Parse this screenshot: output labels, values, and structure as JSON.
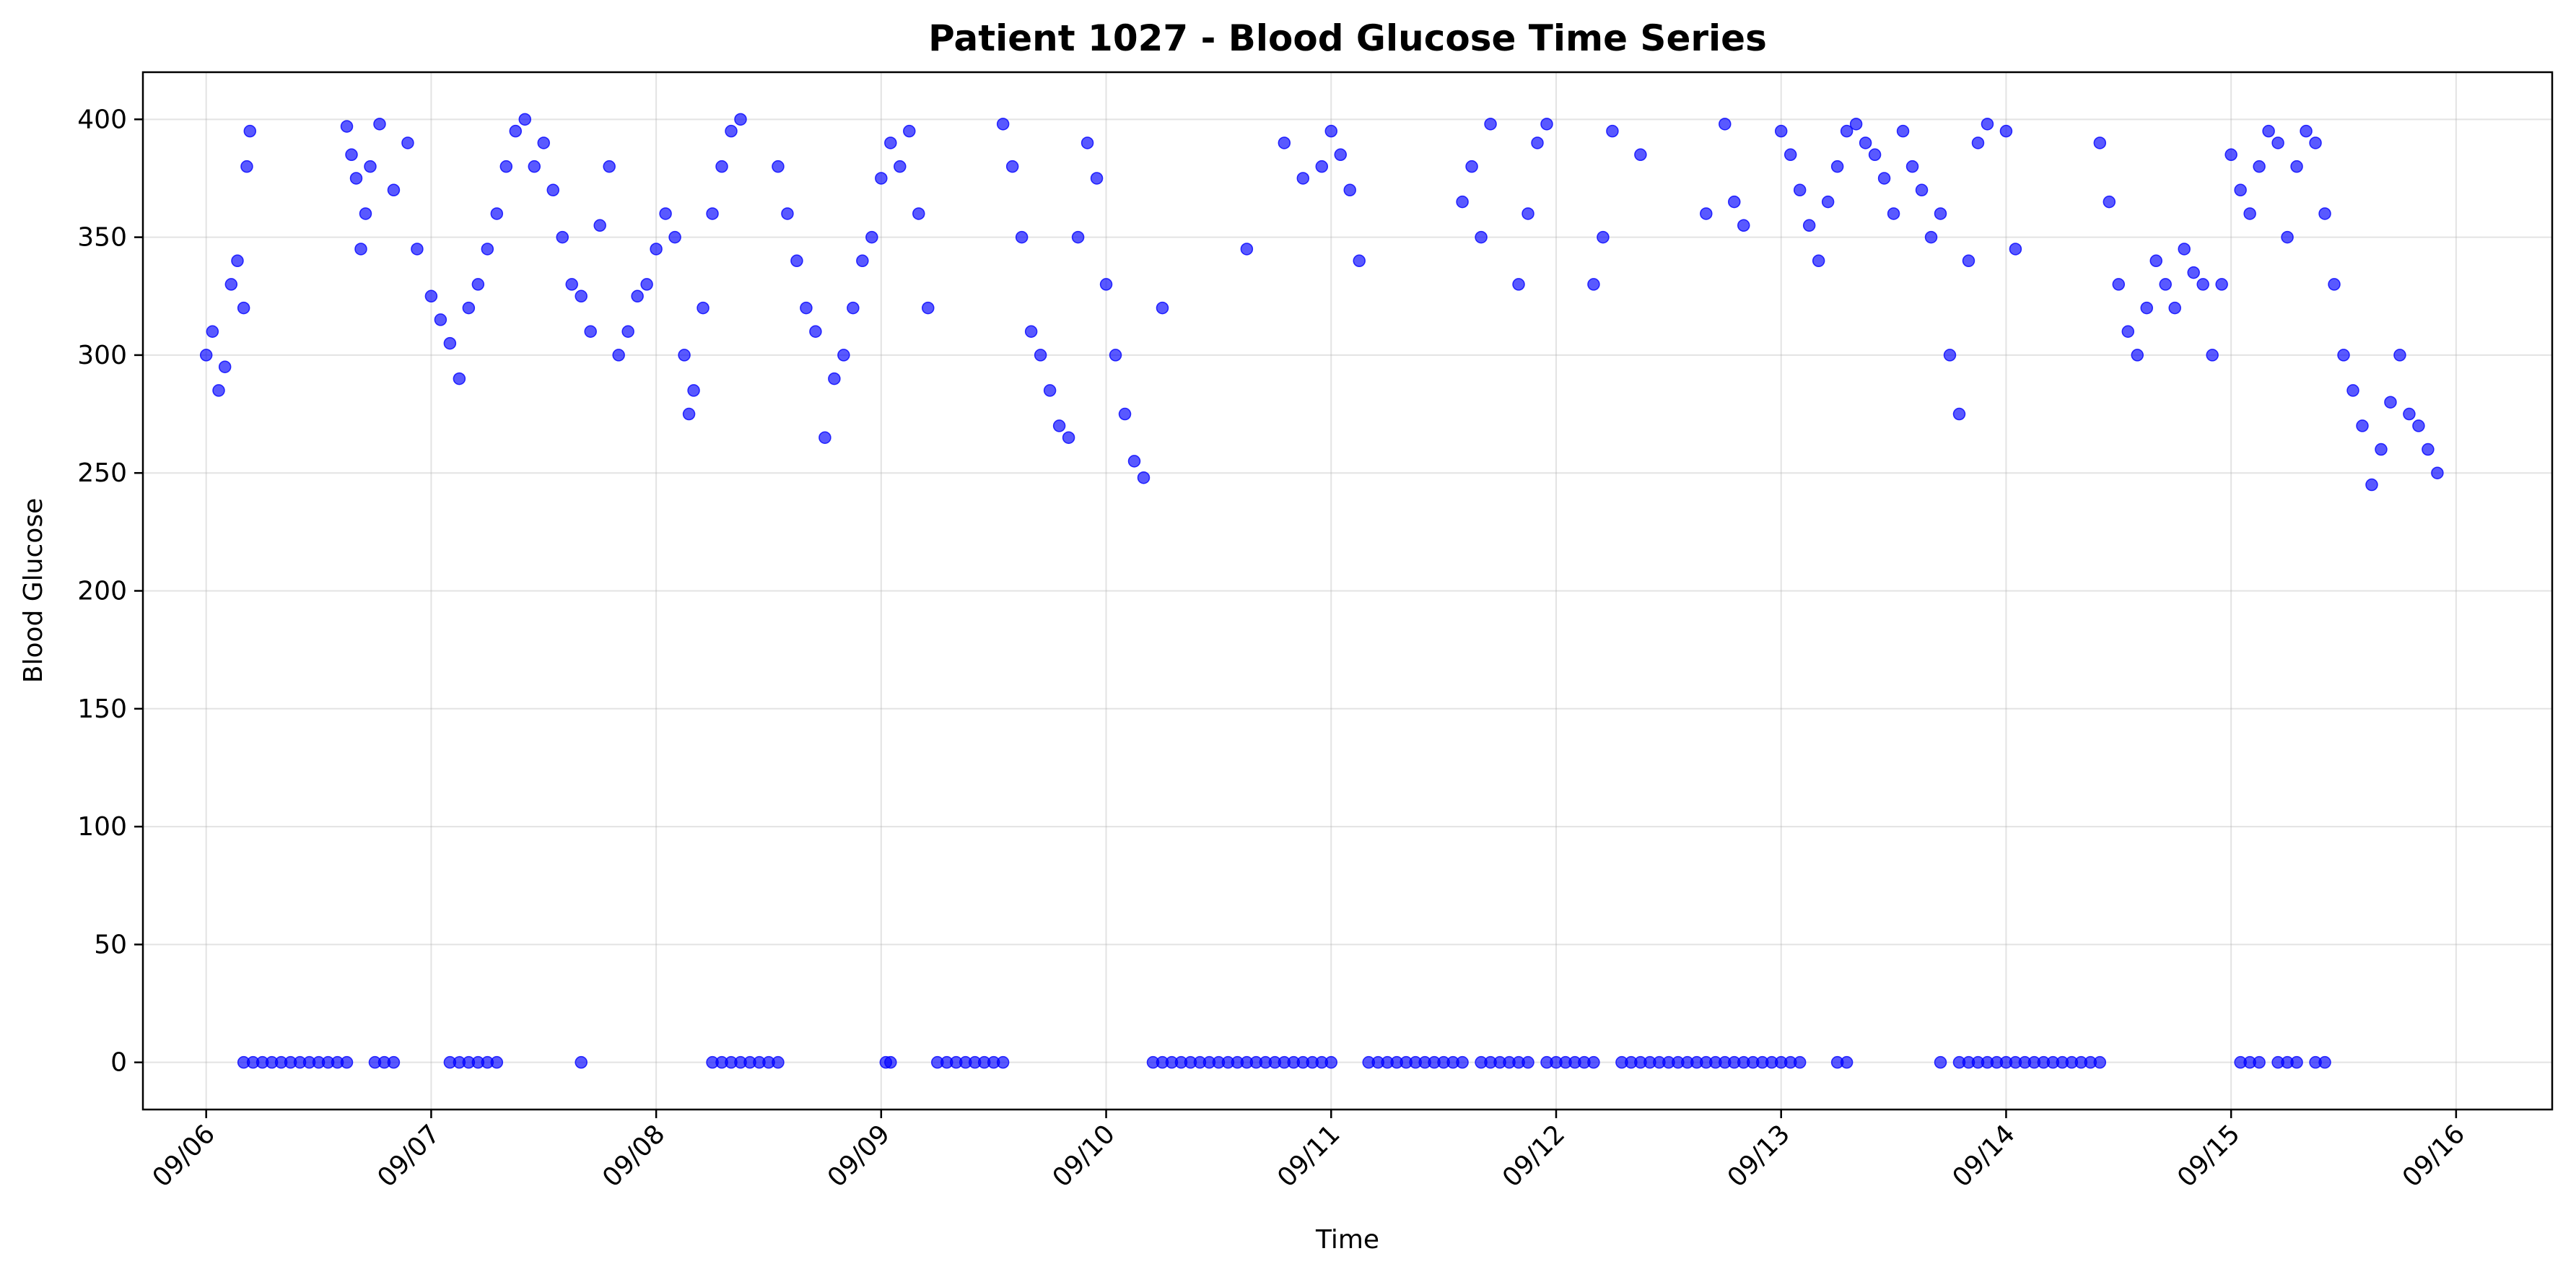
{
  "chart_data": {
    "type": "scatter",
    "title": "Patient 1027 - Blood Glucose Time Series",
    "xlabel": "Time",
    "ylabel": "Blood Glucose",
    "x_ticks": [
      "09/06",
      "09/07",
      "09/08",
      "09/09",
      "09/10",
      "09/11",
      "09/12",
      "09/13",
      "09/14",
      "09/15",
      "09/16"
    ],
    "y_ticks": [
      0,
      50,
      100,
      150,
      200,
      250,
      300,
      350,
      400
    ],
    "xlim": [
      "09/05 17:15",
      "09/16 10:15"
    ],
    "ylim": [
      -20,
      420
    ],
    "grid": true,
    "marker_color": "#0000ff",
    "series": [
      {
        "x": [
          "09/06 00:00",
          "09/06 00:40",
          "09/06 01:20",
          "09/06 02:00",
          "09/06 02:40",
          "09/06 03:20",
          "09/06 04:00",
          "09/06 04:20",
          "09/06 04:40",
          "09/06 15:00",
          "09/06 15:30",
          "09/06 16:00",
          "09/06 16:30",
          "09/06 17:00",
          "09/06 17:30",
          "09/06 18:30",
          "09/06 20:00",
          "09/06 21:30",
          "09/06 22:30",
          "09/07 00:00",
          "09/07 01:00",
          "09/07 02:00",
          "09/07 03:00",
          "09/07 04:00",
          "09/07 05:00",
          "09/07 06:00",
          "09/07 07:00",
          "09/07 08:00",
          "09/07 09:00",
          "09/07 10:00",
          "09/07 11:00",
          "09/07 12:00",
          "09/07 13:00",
          "09/07 14:00",
          "09/07 15:00",
          "09/07 16:00",
          "09/07 17:00",
          "09/07 18:00",
          "09/07 19:00",
          "09/07 20:00",
          "09/07 21:00",
          "09/07 22:00",
          "09/07 23:00",
          "09/08 00:00",
          "09/08 01:00",
          "09/08 02:00",
          "09/08 03:00",
          "09/08 03:30",
          "09/08 04:00",
          "09/08 05:00",
          "09/08 06:00",
          "09/08 07:00",
          "09/08 08:00",
          "09/08 09:00",
          "09/08 13:00",
          "09/08 14:00",
          "09/08 15:00",
          "09/08 16:00",
          "09/08 17:00",
          "09/08 18:00",
          "09/08 19:00",
          "09/08 20:00",
          "09/08 21:00",
          "09/08 22:00",
          "09/08 23:00",
          "09/09 00:00",
          "09/09 01:00",
          "09/09 02:00",
          "09/09 03:00",
          "09/09 04:00",
          "09/09 05:00",
          "09/09 13:00",
          "09/09 14:00",
          "09/09 15:00",
          "09/09 16:00",
          "09/09 17:00",
          "09/09 18:00",
          "09/09 19:00",
          "09/09 20:00",
          "09/09 21:00",
          "09/09 22:00",
          "09/09 23:00",
          "09/10 00:00",
          "09/10 01:00",
          "09/10 02:00",
          "09/10 03:00",
          "09/10 04:00",
          "09/10 06:00",
          "09/10 15:00",
          "09/10 19:00",
          "09/10 21:00",
          "09/10 23:00",
          "09/11 00:00",
          "09/11 01:00",
          "09/11 02:00",
          "09/11 03:00",
          "09/11 14:00",
          "09/11 15:00",
          "09/11 16:00",
          "09/11 17:00",
          "09/11 20:00",
          "09/11 21:00",
          "09/11 22:00",
          "09/11 23:00",
          "09/12 04:00",
          "09/12 05:00",
          "09/12 06:00",
          "09/12 09:00",
          "09/12 16:00",
          "09/12 18:00",
          "09/12 19:00",
          "09/12 20:00",
          "09/13 00:00",
          "09/13 01:00",
          "09/13 02:00",
          "09/13 03:00",
          "09/13 04:00",
          "09/13 05:00",
          "09/13 06:00",
          "09/13 07:00",
          "09/13 08:00",
          "09/13 09:00",
          "09/13 10:00",
          "09/13 11:00",
          "09/13 12:00",
          "09/13 13:00",
          "09/13 14:00",
          "09/13 15:00",
          "09/13 16:00",
          "09/13 17:00",
          "09/13 18:00",
          "09/13 19:00",
          "09/13 20:00",
          "09/13 21:00",
          "09/13 22:00",
          "09/14 00:00",
          "09/14 01:00",
          "09/14 10:00",
          "09/14 11:00",
          "09/14 12:00",
          "09/14 13:00",
          "09/14 14:00",
          "09/14 15:00",
          "09/14 16:00",
          "09/14 17:00",
          "09/14 18:00",
          "09/14 19:00",
          "09/14 20:00",
          "09/14 21:00",
          "09/14 22:00",
          "09/14 23:00",
          "09/15 00:00",
          "09/15 01:00",
          "09/15 02:00",
          "09/15 03:00",
          "09/15 04:00",
          "09/15 05:00",
          "09/15 06:00",
          "09/15 07:00",
          "09/15 08:00",
          "09/15 09:00",
          "09/15 10:00",
          "09/15 11:00",
          "09/15 12:00",
          "09/15 13:00",
          "09/15 14:00",
          "09/15 15:00",
          "09/15 16:00",
          "09/15 17:00",
          "09/15 18:00",
          "09/15 19:00",
          "09/15 20:00",
          "09/15 21:00",
          "09/15 22:00"
        ],
        "y": [
          300,
          310,
          285,
          295,
          330,
          340,
          320,
          380,
          395,
          397,
          385,
          375,
          345,
          360,
          380,
          398,
          370,
          390,
          345,
          325,
          315,
          305,
          290,
          320,
          330,
          345,
          360,
          380,
          395,
          400,
          380,
          390,
          370,
          350,
          330,
          325,
          310,
          355,
          380,
          300,
          310,
          325,
          330,
          345,
          360,
          350,
          300,
          275,
          285,
          320,
          360,
          380,
          395,
          400,
          380,
          360,
          340,
          320,
          310,
          265,
          290,
          300,
          320,
          340,
          350,
          375,
          390,
          380,
          395,
          360,
          320,
          398,
          380,
          350,
          310,
          300,
          285,
          270,
          265,
          350,
          390,
          375,
          330,
          300,
          275,
          255,
          248,
          320,
          345,
          390,
          375,
          380,
          395,
          385,
          370,
          340,
          365,
          380,
          350,
          398,
          330,
          360,
          390,
          398,
          330,
          350,
          395,
          385,
          360,
          398,
          365,
          355,
          395,
          385,
          370,
          355,
          340,
          365,
          380,
          395,
          398,
          390,
          385,
          375,
          360,
          395,
          380,
          370,
          350,
          360,
          300,
          275,
          340,
          390,
          398,
          395,
          345,
          390,
          365,
          330,
          310,
          300,
          320,
          340,
          330,
          320,
          345,
          335,
          330,
          300,
          330,
          385,
          370,
          360,
          380,
          395,
          390,
          350,
          380,
          395,
          390,
          360,
          330,
          300,
          285,
          270,
          245,
          260,
          280,
          300,
          275,
          270,
          260,
          250
        ]
      },
      {
        "x": [
          "09/06 04:00",
          "09/06 05:00",
          "09/06 06:00",
          "09/06 07:00",
          "09/06 08:00",
          "09/06 09:00",
          "09/06 10:00",
          "09/06 11:00",
          "09/06 12:00",
          "09/06 13:00",
          "09/06 14:00",
          "09/06 15:00",
          "09/06 18:00",
          "09/06 19:00",
          "09/06 20:00",
          "09/07 02:00",
          "09/07 03:00",
          "09/07 04:00",
          "09/07 05:00",
          "09/07 06:00",
          "09/07 07:00",
          "09/07 16:00",
          "09/08 06:00",
          "09/08 07:00",
          "09/08 08:00",
          "09/08 09:00",
          "09/08 10:00",
          "09/08 11:00",
          "09/08 12:00",
          "09/08 13:00",
          "09/09 00:30",
          "09/09 01:00",
          "09/09 06:00",
          "09/09 07:00",
          "09/09 08:00",
          "09/09 09:00",
          "09/09 10:00",
          "09/09 11:00",
          "09/09 12:00",
          "09/09 13:00",
          "09/10 05:00",
          "09/10 06:00",
          "09/10 07:00",
          "09/10 08:00",
          "09/10 09:00",
          "09/10 10:00",
          "09/10 11:00",
          "09/10 12:00",
          "09/10 13:00",
          "09/10 14:00",
          "09/10 15:00",
          "09/10 16:00",
          "09/10 17:00",
          "09/10 18:00",
          "09/10 19:00",
          "09/10 20:00",
          "09/10 21:00",
          "09/10 22:00",
          "09/10 23:00",
          "09/11 00:00",
          "09/11 04:00",
          "09/11 05:00",
          "09/11 06:00",
          "09/11 07:00",
          "09/11 08:00",
          "09/11 09:00",
          "09/11 10:00",
          "09/11 11:00",
          "09/11 12:00",
          "09/11 13:00",
          "09/11 14:00",
          "09/11 16:00",
          "09/11 17:00",
          "09/11 18:00",
          "09/11 19:00",
          "09/11 20:00",
          "09/11 21:00",
          "09/11 23:00",
          "09/12 00:00",
          "09/12 01:00",
          "09/12 02:00",
          "09/12 03:00",
          "09/12 04:00",
          "09/12 07:00",
          "09/12 08:00",
          "09/12 09:00",
          "09/12 10:00",
          "09/12 11:00",
          "09/12 12:00",
          "09/12 13:00",
          "09/12 14:00",
          "09/12 15:00",
          "09/12 16:00",
          "09/12 17:00",
          "09/12 18:00",
          "09/12 19:00",
          "09/12 20:00",
          "09/12 21:00",
          "09/12 22:00",
          "09/12 23:00",
          "09/13 00:00",
          "09/13 01:00",
          "09/13 02:00",
          "09/13 06:00",
          "09/13 07:00",
          "09/13 17:00",
          "09/13 19:00",
          "09/13 20:00",
          "09/13 21:00",
          "09/13 22:00",
          "09/13 23:00",
          "09/14 00:00",
          "09/14 01:00",
          "09/14 02:00",
          "09/14 03:00",
          "09/14 04:00",
          "09/14 05:00",
          "09/14 06:00",
          "09/14 07:00",
          "09/14 08:00",
          "09/14 09:00",
          "09/14 10:00",
          "09/15 01:00",
          "09/15 02:00",
          "09/15 03:00",
          "09/15 05:00",
          "09/15 06:00",
          "09/15 07:00",
          "09/15 09:00",
          "09/15 10:00"
        ],
        "y": [
          0,
          0,
          0,
          0,
          0,
          0,
          0,
          0,
          0,
          0,
          0,
          0,
          0,
          0,
          0,
          0,
          0,
          0,
          0,
          0,
          0,
          0,
          0,
          0,
          0,
          0,
          0,
          0,
          0,
          0,
          0,
          0,
          0,
          0,
          0,
          0,
          0,
          0,
          0,
          0,
          0,
          0,
          0,
          0,
          0,
          0,
          0,
          0,
          0,
          0,
          0,
          0,
          0,
          0,
          0,
          0,
          0,
          0,
          0,
          0,
          0,
          0,
          0,
          0,
          0,
          0,
          0,
          0,
          0,
          0,
          0,
          0,
          0,
          0,
          0,
          0,
          0,
          0,
          0,
          0,
          0,
          0,
          0,
          0,
          0,
          0,
          0,
          0,
          0,
          0,
          0,
          0,
          0,
          0,
          0,
          0,
          0,
          0,
          0,
          0,
          0,
          0,
          0,
          0,
          0,
          0,
          0,
          0,
          0,
          0,
          0,
          0,
          0,
          0,
          0,
          0,
          0,
          0,
          0,
          0,
          0,
          0,
          0,
          0,
          0,
          0,
          0,
          0,
          0,
          0
        ]
      }
    ]
  }
}
